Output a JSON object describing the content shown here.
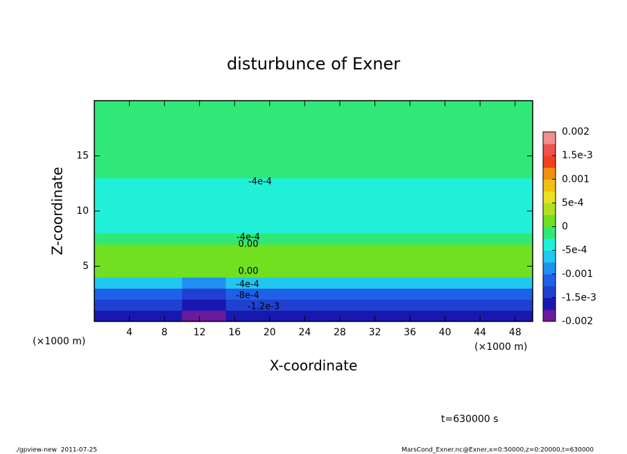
{
  "chart_data": {
    "type": "contour",
    "title": "disturbunce of Exner",
    "x_label": "X-coordinate",
    "y_label": "Z-coordinate",
    "x_unit_left": "(×1000 m)",
    "x_unit_right": "(×1000 m)",
    "time_label": "t=630000 s",
    "footer_left": "./gpview-new  2011-07-25",
    "footer_right": "MarsCond_Exner.nc@Exner,x=0:50000,z=0:20000,t=630000",
    "xlim": [
      0,
      50
    ],
    "xticks": [
      4,
      8,
      12,
      16,
      20,
      24,
      28,
      32,
      36,
      40,
      44,
      48
    ],
    "ylim": [
      0,
      20
    ],
    "yticks": [
      5,
      10,
      15
    ],
    "contour_labels": [
      "-4e-4",
      "-4e-4",
      "0.00",
      "0.00",
      "-4e-4",
      "-8e-4",
      "-1.2e-3"
    ],
    "levels": [
      -0.002,
      -0.00175,
      -0.0015,
      -0.00125,
      -0.001,
      -0.00075,
      -0.0005,
      -0.00025,
      0,
      0.00025,
      0.0005,
      0.00075,
      0.001,
      0.00125,
      0.0015,
      0.00175,
      0.002
    ],
    "colors": [
      "#6a1a9a",
      "#1818b0",
      "#2040d0",
      "#2060e8",
      "#2090f0",
      "#20c8f0",
      "#20f0d8",
      "#30e878",
      "#70e020",
      "#b0e020",
      "#e8e020",
      "#f0c010",
      "#f09010",
      "#f04020",
      "#f05050",
      "#f09090"
    ],
    "colorbar_ticks": [
      0.002,
      {
        "value": 0.0015,
        "label": "1.5e-3"
      },
      0.001,
      {
        "value": 0.0005,
        "label": "5e-4"
      },
      0,
      {
        "value": -0.0005,
        "label": "-5e-4"
      },
      -0.001,
      {
        "value": -0.0015,
        "label": "-1.5e-3"
      },
      -0.002
    ],
    "field_rows": [
      [
        -0.0017,
        -0.0017,
        -0.00185,
        -0.0017,
        -0.0017,
        -0.0017,
        -0.0017,
        -0.0017,
        -0.0017,
        -0.0017
      ],
      [
        -0.0014,
        -0.0014,
        -0.0016,
        -0.0014,
        -0.0014,
        -0.0014,
        -0.0014,
        -0.0014,
        -0.0014,
        -0.0014
      ],
      [
        -0.0011,
        -0.0011,
        -0.0013,
        -0.0011,
        -0.0011,
        -0.0011,
        -0.0011,
        -0.0011,
        -0.0011,
        -0.0011
      ],
      [
        -0.0007,
        -0.0007,
        -0.0009,
        -0.0007,
        -0.0007,
        -0.0007,
        -0.0007,
        -0.0007,
        -0.0007,
        -0.0007
      ],
      [
        5e-05,
        5e-05,
        3e-05,
        5e-05,
        5e-05,
        5e-05,
        5e-05,
        5e-05,
        5e-05,
        5e-05
      ],
      [
        0.00015,
        0.00015,
        0.00015,
        0.00015,
        0.00015,
        0.00015,
        0.00015,
        0.00015,
        0.00015,
        0.00015
      ],
      [
        0.0001,
        0.0001,
        0.0001,
        0.0001,
        0.0001,
        0.0001,
        0.0001,
        0.0001,
        0.0001,
        0.0001
      ],
      [
        -0.0002,
        -0.0002,
        -0.0002,
        -0.0002,
        -0.0002,
        -0.0002,
        -0.0002,
        -0.0002,
        -0.0002,
        -0.0002
      ],
      [
        -0.0004,
        -0.0003,
        -0.0004,
        -0.0004,
        -0.0004,
        -0.0004,
        -0.0004,
        -0.0003,
        -0.0004,
        -0.0004
      ],
      [
        -0.00045,
        -0.00045,
        -0.00045,
        -0.00045,
        -0.00045,
        -0.00045,
        -0.00045,
        -0.00045,
        -0.00045,
        -0.00045
      ],
      [
        -0.00045,
        -0.00045,
        -0.00045,
        -0.00045,
        -0.00045,
        -0.00045,
        -0.00045,
        -0.00045,
        -0.00045,
        -0.00045
      ],
      [
        -0.00045,
        -0.00045,
        -0.00045,
        -0.00045,
        -0.00045,
        -0.00045,
        -0.00045,
        -0.00045,
        -0.00045,
        -0.00045
      ],
      [
        -0.00042,
        -0.00042,
        -0.00042,
        -0.00042,
        -0.00042,
        -0.00042,
        -0.00042,
        -0.00042,
        -0.00042,
        -0.00042
      ],
      [
        -0.00022,
        -0.00022,
        -0.00022,
        -0.00022,
        -0.00022,
        -0.00022,
        -0.00022,
        -0.00022,
        -0.00022,
        -0.00022
      ],
      [
        -0.0002,
        -0.0002,
        -0.0002,
        -0.0002,
        -0.0002,
        -0.0002,
        -0.0002,
        -0.0002,
        -0.0002,
        -0.0002
      ],
      [
        -0.0002,
        -0.0002,
        -0.0002,
        -0.0002,
        -0.00024,
        -0.0002,
        -0.0002,
        -0.0002,
        -0.0002,
        -0.0002
      ],
      [
        -0.0002,
        -0.0002,
        -0.0002,
        -0.0002,
        -0.0002,
        -0.0002,
        -0.0002,
        -0.0002,
        -0.0002,
        -0.0002
      ],
      [
        -0.0002,
        -0.0002,
        -0.0002,
        -0.0002,
        -0.0002,
        -0.0002,
        -0.0002,
        -0.0002,
        -0.0002,
        -0.0002
      ],
      [
        -0.0002,
        -0.0002,
        -0.0002,
        -0.0002,
        -0.0002,
        -0.0002,
        -0.0002,
        -0.0002,
        -0.0002,
        -0.0002
      ],
      [
        -0.0002,
        -0.0002,
        -0.0002,
        -0.0002,
        -0.0002,
        -0.0002,
        -0.0002,
        -0.0002,
        -0.0002,
        -0.0002
      ]
    ]
  }
}
